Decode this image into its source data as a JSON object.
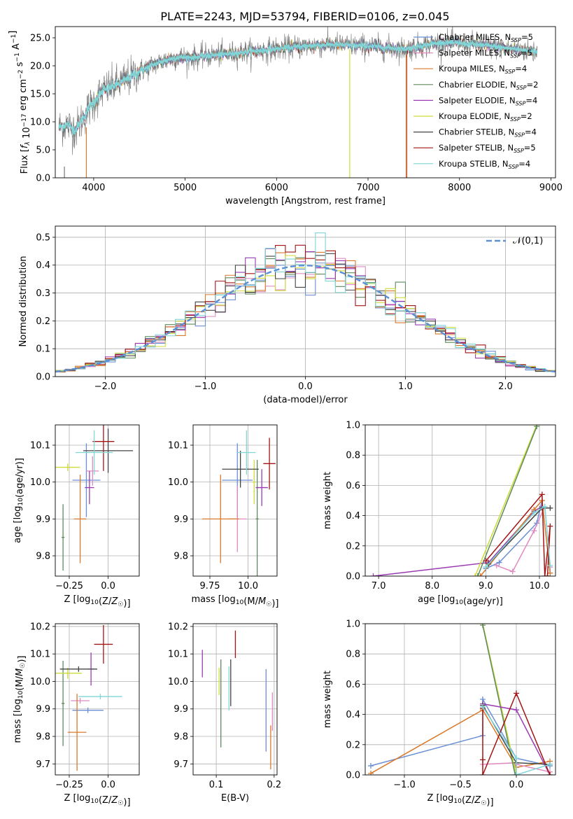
{
  "figure": {
    "title": "PLATE=2243, MJD=53794, FIBERID=0106, z=0.045"
  },
  "palette": {
    "chabrier_miles": "#6a8fd6",
    "salpeter_miles": "#e08ac0",
    "kroupa_miles": "#d9792a",
    "chabrier_elodie": "#5e8a5e",
    "salpeter_elodie": "#9b3bb3",
    "kroupa_elodie": "#cddc39",
    "chabrier_stelib": "#444444",
    "salpeter_stelib": "#a31515",
    "kroupa_stelib": "#7ed6d6",
    "data": "#777777",
    "gauss": "#5b8fd6"
  },
  "chart_data": [
    {
      "id": "spectrum",
      "type": "line",
      "xlabel": "wavelength [Angstrom, rest frame]",
      "ylabel": "Flux [f_λ 10^-17 erg cm^-2 s^-1 A^-1]",
      "xlim": [
        3580,
        9050
      ],
      "ylim": [
        0,
        27
      ],
      "xticks": [
        4000,
        5000,
        6000,
        7000,
        8000,
        9000
      ],
      "yticks": [
        0,
        5,
        10,
        15,
        20,
        25
      ],
      "grid": false,
      "legend_position": "upper-right",
      "legend": [
        {
          "key": "chabrier_miles",
          "text": "Chabrier MILES, N",
          "sub": "SSP",
          "tail": "=5"
        },
        {
          "key": "salpeter_miles",
          "text": "Salpeter MILES, N",
          "sub": "SSP",
          "tail": "=5"
        },
        {
          "key": "kroupa_miles",
          "text": "Kroupa MILES, N",
          "sub": "SSP",
          "tail": "=4"
        },
        {
          "key": "chabrier_elodie",
          "text": "Chabrier ELODIE, N",
          "sub": "SSP",
          "tail": "=2"
        },
        {
          "key": "salpeter_elodie",
          "text": "Salpeter ELODIE, N",
          "sub": "SSP",
          "tail": "=4"
        },
        {
          "key": "kroupa_elodie",
          "text": "Kroupa ELODIE, N",
          "sub": "SSP",
          "tail": "=2"
        },
        {
          "key": "chabrier_stelib",
          "text": "Chabrier STELIB, N",
          "sub": "SSP",
          "tail": "=4"
        },
        {
          "key": "salpeter_stelib",
          "text": "Salpeter STELIB, N",
          "sub": "SSP",
          "tail": "=5"
        },
        {
          "key": "kroupa_stelib",
          "text": "Kroupa STELIB, N",
          "sub": "SSP",
          "tail": "=4"
        }
      ],
      "continuum": [
        [
          3620,
          9.0
        ],
        [
          3700,
          9.5
        ],
        [
          3800,
          8.5
        ],
        [
          3950,
          12.5
        ],
        [
          4100,
          15.5
        ],
        [
          4300,
          17.0
        ],
        [
          4500,
          19.0
        ],
        [
          4700,
          20.5
        ],
        [
          4900,
          21.5
        ],
        [
          5100,
          21.5
        ],
        [
          5400,
          22.0
        ],
        [
          5700,
          22.5
        ],
        [
          6000,
          23.0
        ],
        [
          6300,
          23.5
        ],
        [
          6600,
          23.8
        ],
        [
          7000,
          23.5
        ],
        [
          7400,
          23.0
        ],
        [
          7800,
          24.2
        ],
        [
          8200,
          23.8
        ],
        [
          8600,
          23.0
        ],
        [
          8850,
          22.5
        ]
      ],
      "glitches": [
        {
          "key": "kroupa_elodie",
          "x": 6800,
          "y_from": 23,
          "y_to": 0
        },
        {
          "key": "salpeter_stelib",
          "x": 7420,
          "y_from": 22,
          "y_to": 0
        },
        {
          "key": "kroupa_miles",
          "x": 7425,
          "y_from": 22,
          "y_to": 0
        },
        {
          "key": "kroupa_miles",
          "x": 3920,
          "y_from": 9,
          "y_to": 0
        },
        {
          "key": "data",
          "x": 3680,
          "y_from": 2,
          "y_to": 0
        }
      ]
    },
    {
      "id": "residuals",
      "type": "step",
      "xlabel": "(data-model)/error",
      "ylabel": "Normed distribution",
      "xlim": [
        -2.5,
        2.5
      ],
      "ylim": [
        0,
        0.54
      ],
      "xticks": [
        -2,
        -1,
        0,
        1,
        2
      ],
      "yticks": [
        0.0,
        0.1,
        0.2,
        0.3,
        0.4,
        0.5
      ],
      "grid": true,
      "bin_width": 0.1,
      "legend_label": "𝒩(0,1)",
      "legend_position": "upper-right"
    },
    {
      "id": "age_vs_Z",
      "type": "errorbar",
      "xlabel": "Z [log10(Z/Z☉)]",
      "ylabel": "age  [log10(age/yr)]",
      "xlim": [
        -0.34,
        0.2
      ],
      "ylim": [
        9.745,
        10.155
      ],
      "xticks": [
        -0.25,
        0.0
      ],
      "yticks": [
        9.8,
        9.9,
        10.0,
        10.1
      ],
      "grid": true,
      "points": [
        {
          "key": "chabrier_miles",
          "x": -0.14,
          "y": 10.005,
          "xerr": 0.09,
          "yerr": 0.1
        },
        {
          "key": "salpeter_miles",
          "x": -0.1,
          "y": 10.03,
          "xerr": 0.04,
          "yerr": 0.04
        },
        {
          "key": "kroupa_miles",
          "x": -0.18,
          "y": 9.9,
          "xerr": 0.04,
          "yerr": 0.12
        },
        {
          "key": "chabrier_elodie",
          "x": -0.29,
          "y": 9.85,
          "xerr": 0.01,
          "yerr": 0.09
        },
        {
          "key": "salpeter_elodie",
          "x": -0.12,
          "y": 9.985,
          "xerr": 0.03,
          "yerr": 0.045
        },
        {
          "key": "kroupa_elodie",
          "x": -0.26,
          "y": 10.04,
          "xerr": 0.08,
          "yerr": 0.01
        },
        {
          "key": "chabrier_stelib",
          "x": 0.0,
          "y": 10.085,
          "xerr": 0.16,
          "yerr": 0.06
        },
        {
          "key": "salpeter_stelib",
          "x": -0.03,
          "y": 10.11,
          "xerr": 0.07,
          "yerr": 0.08
        },
        {
          "key": "kroupa_stelib",
          "x": -0.09,
          "y": 10.08,
          "xerr": 0.12,
          "yerr": 0.06
        }
      ]
    },
    {
      "id": "age_vs_mass",
      "type": "errorbar",
      "xlabel": "mass [log10(M/M☉)]",
      "ylabel": "",
      "xlim": [
        9.64,
        10.19
      ],
      "ylim": [
        9.745,
        10.155
      ],
      "xticks": [
        9.75,
        10.0
      ],
      "yticks": [
        9.8,
        9.9,
        10.0,
        10.1
      ],
      "grid": true,
      "points": [
        {
          "key": "chabrier_miles",
          "x": 9.93,
          "y": 10.005,
          "xerr": 0.1,
          "yerr": 0.1
        },
        {
          "key": "salpeter_miles",
          "x": 9.93,
          "y": 9.9,
          "xerr": 0.06,
          "yerr": 0.09
        },
        {
          "key": "kroupa_miles",
          "x": 9.82,
          "y": 9.9,
          "xerr": 0.12,
          "yerr": 0.12
        },
        {
          "key": "chabrier_elodie",
          "x": 10.06,
          "y": 9.9,
          "xerr": 0.01,
          "yerr": 0.16
        },
        {
          "key": "salpeter_elodie",
          "x": 10.09,
          "y": 9.985,
          "xerr": 0.04,
          "yerr": 0.05
        },
        {
          "key": "kroupa_elodie",
          "x": 10.04,
          "y": 10.0,
          "xerr": 0.01,
          "yerr": 0.06
        },
        {
          "key": "chabrier_stelib",
          "x": 9.95,
          "y": 10.035,
          "xerr": 0.12,
          "yerr": 0.05
        },
        {
          "key": "salpeter_stelib",
          "x": 10.14,
          "y": 10.05,
          "xerr": 0.04,
          "yerr": 0.07
        },
        {
          "key": "kroupa_stelib",
          "x": 9.99,
          "y": 10.08,
          "xerr": 0.06,
          "yerr": 0.06
        }
      ]
    },
    {
      "id": "weight_vs_age",
      "type": "line",
      "xlabel": "age  [log10(age/yr)]",
      "ylabel": "mass weight",
      "xlim": [
        6.75,
        10.3
      ],
      "ylim": [
        0,
        1
      ],
      "xticks": [
        7,
        8,
        9,
        10
      ],
      "yticks": [
        0.0,
        0.2,
        0.4,
        0.6,
        0.8,
        1.0
      ],
      "grid": true,
      "series": [
        {
          "key": "salpeter_elodie",
          "points": [
            [
              6.9,
              0.0
            ],
            [
              9.05,
              0.09
            ],
            [
              9.9,
              0.43
            ],
            [
              10.05,
              0.46
            ]
          ]
        },
        {
          "key": "kroupa_elodie",
          "points": [
            [
              8.8,
              0.0
            ],
            [
              9.95,
              1.0
            ]
          ]
        },
        {
          "key": "chabrier_elodie",
          "points": [
            [
              8.85,
              0.0
            ],
            [
              9.95,
              0.99
            ]
          ]
        },
        {
          "key": "chabrier_miles",
          "points": [
            [
              9.0,
              0.05
            ],
            [
              9.25,
              0.09
            ],
            [
              9.95,
              0.35
            ],
            [
              10.05,
              0.5
            ]
          ]
        },
        {
          "key": "salpeter_miles",
          "points": [
            [
              9.2,
              0.07
            ],
            [
              9.5,
              0.03
            ],
            [
              9.9,
              0.3
            ],
            [
              10.1,
              0.46
            ],
            [
              10.2,
              0.06
            ]
          ]
        },
        {
          "key": "kroupa_miles",
          "points": [
            [
              8.9,
              0.0
            ],
            [
              9.9,
              0.44
            ],
            [
              10.05,
              0.5
            ],
            [
              10.2,
              0.02
            ]
          ]
        },
        {
          "key": "chabrier_stelib",
          "points": [
            [
              9.05,
              0.08
            ],
            [
              10.05,
              0.45
            ],
            [
              10.2,
              0.45
            ]
          ]
        },
        {
          "key": "salpeter_stelib",
          "points": [
            [
              9.0,
              0.1
            ],
            [
              10.05,
              0.54
            ],
            [
              10.1,
              0.0
            ],
            [
              10.2,
              0.33
            ],
            [
              10.15,
              0.0
            ]
          ]
        },
        {
          "key": "kroupa_stelib",
          "points": [
            [
              9.0,
              0.06
            ],
            [
              9.9,
              0.42
            ],
            [
              10.1,
              0.46
            ],
            [
              10.2,
              0.07
            ]
          ]
        }
      ]
    },
    {
      "id": "mass_vs_Z",
      "type": "errorbar",
      "xlabel": "Z [log10(Z/Z☉)]",
      "ylabel": "mass [log10(M/M☉)]",
      "xlim": [
        -0.34,
        0.2
      ],
      "ylim": [
        9.66,
        10.21
      ],
      "xticks": [
        -0.25,
        0.0
      ],
      "yticks": [
        9.7,
        9.8,
        9.9,
        10.0,
        10.1,
        10.2
      ],
      "grid": true,
      "points": [
        {
          "key": "chabrier_miles",
          "x": -0.13,
          "y": 9.895,
          "xerr": 0.1,
          "yerr": 0.01
        },
        {
          "key": "salpeter_miles",
          "x": -0.18,
          "y": 9.93,
          "xerr": 0.06,
          "yerr": 0.01
        },
        {
          "key": "kroupa_miles",
          "x": -0.2,
          "y": 9.815,
          "xerr": 0.06,
          "yerr": 0.14
        },
        {
          "key": "chabrier_elodie",
          "x": -0.29,
          "y": 9.92,
          "xerr": 0.01,
          "yerr": 0.155
        },
        {
          "key": "salpeter_elodie",
          "x": -0.11,
          "y": 10.045,
          "xerr": 0.02,
          "yerr": 0.06
        },
        {
          "key": "kroupa_elodie",
          "x": -0.26,
          "y": 10.03,
          "xerr": 0.09,
          "yerr": 0.02
        },
        {
          "key": "chabrier_stelib",
          "x": -0.19,
          "y": 10.045,
          "xerr": 0.12,
          "yerr": 0.01
        },
        {
          "key": "salpeter_stelib",
          "x": -0.03,
          "y": 10.135,
          "xerr": 0.06,
          "yerr": 0.07
        },
        {
          "key": "kroupa_stelib",
          "x": -0.05,
          "y": 9.945,
          "xerr": 0.14,
          "yerr": 0.01
        }
      ]
    },
    {
      "id": "mass_vs_ebv",
      "type": "errorbar",
      "xlabel": "E(B-V)",
      "ylabel": "",
      "xlim": [
        0.06,
        0.205
      ],
      "ylim": [
        9.66,
        10.21
      ],
      "xticks": [
        0.1,
        0.2
      ],
      "yticks": [
        9.7,
        9.8,
        9.9,
        10.0,
        10.1,
        10.2
      ],
      "grid": true,
      "points": [
        {
          "key": "chabrier_miles",
          "x": 0.186,
          "y": 9.895,
          "xerr": 0.0,
          "yerr": 0.15
        },
        {
          "key": "salpeter_miles",
          "x": 0.197,
          "y": 9.89,
          "xerr": 0.0,
          "yerr": 0.07
        },
        {
          "key": "kroupa_miles",
          "x": 0.194,
          "y": 9.76,
          "xerr": 0.0,
          "yerr": 0.08
        },
        {
          "key": "chabrier_elodie",
          "x": 0.108,
          "y": 9.92,
          "xerr": 0.0,
          "yerr": 0.16
        },
        {
          "key": "salpeter_elodie",
          "x": 0.076,
          "y": 10.065,
          "xerr": 0.0,
          "yerr": 0.05
        },
        {
          "key": "kroupa_elodie",
          "x": 0.105,
          "y": 10.0,
          "xerr": 0.0,
          "yerr": 0.05
        },
        {
          "key": "chabrier_stelib",
          "x": 0.125,
          "y": 9.995,
          "xerr": 0.0,
          "yerr": 0.085
        },
        {
          "key": "salpeter_stelib",
          "x": 0.133,
          "y": 10.135,
          "xerr": 0.0,
          "yerr": 0.05
        },
        {
          "key": "kroupa_stelib",
          "x": 0.122,
          "y": 9.975,
          "xerr": 0.0,
          "yerr": 0.08
        }
      ]
    },
    {
      "id": "weight_vs_Z",
      "type": "line",
      "xlabel": "Z [log10(Z/Z☉)]",
      "ylabel": "mass weight",
      "xlim": [
        -1.35,
        0.35
      ],
      "ylim": [
        0,
        1
      ],
      "xticks": [
        -1.0,
        -0.5,
        0.0
      ],
      "yticks": [
        0.0,
        0.2,
        0.4,
        0.6,
        0.8,
        1.0
      ],
      "grid": true,
      "series": [
        {
          "key": "chabrier_miles",
          "points": [
            [
              -1.3,
              0.06
            ],
            [
              -0.3,
              0.26
            ],
            [
              -0.3,
              0.5
            ],
            [
              0.0,
              0.11
            ],
            [
              0.3,
              0.06
            ]
          ]
        },
        {
          "key": "kroupa_miles",
          "points": [
            [
              -1.3,
              0.01
            ],
            [
              -0.3,
              0.43
            ],
            [
              0.0,
              0.05
            ],
            [
              0.3,
              0.09
            ]
          ]
        },
        {
          "key": "salpeter_miles",
          "points": [
            [
              -0.3,
              0.07
            ],
            [
              0.0,
              0.08
            ],
            [
              0.0,
              0.07
            ],
            [
              0.3,
              0.02
            ]
          ]
        },
        {
          "key": "kroupa_elodie",
          "points": [
            [
              -0.3,
              1.0
            ],
            [
              0.0,
              0.0
            ]
          ]
        },
        {
          "key": "chabrier_elodie",
          "points": [
            [
              -0.3,
              0.99
            ],
            [
              -0.01,
              0.0
            ]
          ]
        },
        {
          "key": "salpeter_elodie",
          "points": [
            [
              -0.3,
              0.47
            ],
            [
              0.0,
              0.43
            ],
            [
              0.3,
              0.0
            ]
          ]
        },
        {
          "key": "chabrier_stelib",
          "points": [
            [
              -0.3,
              0.46
            ],
            [
              0.0,
              0.08
            ],
            [
              0.3,
              0.07
            ]
          ]
        },
        {
          "key": "salpeter_stelib",
          "points": [
            [
              -0.3,
              0.44
            ],
            [
              -0.3,
              0.1
            ],
            [
              -0.3,
              0.0
            ],
            [
              0.0,
              0.54
            ],
            [
              0.3,
              0.0
            ]
          ]
        },
        {
          "key": "kroupa_stelib",
          "points": [
            [
              -0.3,
              0.45
            ],
            [
              0.0,
              0.11
            ],
            [
              0.0,
              0.0
            ],
            [
              0.3,
              0.07
            ]
          ]
        }
      ]
    }
  ]
}
